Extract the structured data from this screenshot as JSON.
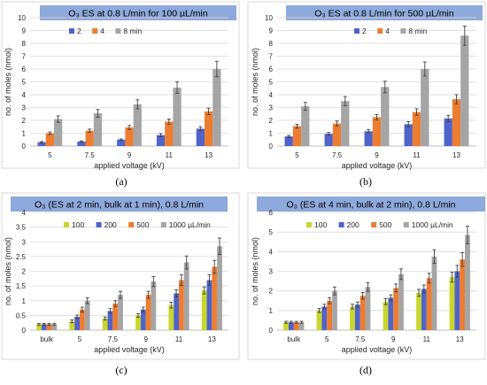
{
  "chart_data": [
    {
      "panel_label": "(a)",
      "type": "bar",
      "title": "O₃ ES at 0.8 L/min for 100 µL/min",
      "xlabel": "applied voltage (kV)",
      "ylabel": "no. of moles (nmol)",
      "ylim": [
        0,
        10
      ],
      "yticks": [
        "0",
        "1",
        "2",
        "3",
        "4",
        "5",
        "6",
        "7",
        "8",
        "9",
        "10"
      ],
      "legend_position": "top-left",
      "categories": [
        "5",
        "7.5",
        "9",
        "11",
        "13"
      ],
      "series": [
        {
          "name": "2",
          "color": "#4f63c9",
          "values": [
            0.3,
            0.35,
            0.5,
            0.85,
            1.35
          ],
          "errors": [
            0.05,
            0.05,
            0.05,
            0.12,
            0.15
          ]
        },
        {
          "name": "4",
          "color": "#ed7d31",
          "values": [
            1.0,
            1.2,
            1.45,
            1.9,
            2.7
          ],
          "errors": [
            0.1,
            0.12,
            0.15,
            0.2,
            0.25
          ]
        },
        {
          "name": "8 min",
          "color": "#a5a5a5",
          "values": [
            2.1,
            2.55,
            3.25,
            4.55,
            6.0
          ],
          "errors": [
            0.25,
            0.3,
            0.35,
            0.45,
            0.6
          ]
        }
      ]
    },
    {
      "panel_label": "(b)",
      "type": "bar",
      "title": "O₃ ES at 0.8 L/min for 500 µL/min",
      "xlabel": "applied voltage (kV)",
      "ylabel": "no. of moles (nmol)",
      "ylim": [
        0,
        10
      ],
      "yticks": [
        "0",
        "1",
        "2",
        "3",
        "4",
        "5",
        "6",
        "7",
        "8",
        "9",
        "10"
      ],
      "legend_position": "top-right",
      "categories": [
        "5",
        "7.5",
        "9",
        "11",
        "13"
      ],
      "series": [
        {
          "name": "2",
          "color": "#4f63c9",
          "values": [
            0.75,
            0.95,
            1.15,
            1.7,
            2.15
          ],
          "errors": [
            0.08,
            0.1,
            0.12,
            0.2,
            0.25
          ]
        },
        {
          "name": "4",
          "color": "#ed7d31",
          "values": [
            1.55,
            1.75,
            2.25,
            2.65,
            3.65
          ],
          "errors": [
            0.15,
            0.2,
            0.2,
            0.25,
            0.35
          ]
        },
        {
          "name": "8 min",
          "color": "#a5a5a5",
          "values": [
            3.1,
            3.5,
            4.6,
            6.0,
            8.6
          ],
          "errors": [
            0.3,
            0.35,
            0.45,
            0.55,
            0.75
          ]
        }
      ]
    },
    {
      "panel_label": "(c)",
      "type": "bar",
      "title": "O₃ (ES at 2 min, bulk at 1 min), 0.8 L/min",
      "xlabel": "applied voltage (kV)",
      "ylabel": "no. of moles (nmol)",
      "ylim": [
        0,
        4
      ],
      "yticks": [
        "0",
        "0.5",
        "1",
        "1.5",
        "2",
        "2.5",
        "3",
        "3.5",
        "4"
      ],
      "legend_position": "top",
      "categories": [
        "bulk",
        "5",
        "7.5",
        "9",
        "11",
        "13"
      ],
      "series": [
        {
          "name": "100",
          "color": "#c9d62e",
          "values": [
            0.2,
            0.3,
            0.4,
            0.5,
            0.85,
            1.35
          ],
          "errors": [
            0.03,
            0.05,
            0.05,
            0.06,
            0.1,
            0.12
          ]
        },
        {
          "name": "200",
          "color": "#4f63c9",
          "values": [
            0.2,
            0.45,
            0.65,
            0.7,
            1.25,
            1.7
          ],
          "errors": [
            0.03,
            0.06,
            0.08,
            0.08,
            0.12,
            0.18
          ]
        },
        {
          "name": "500",
          "color": "#ed7d31",
          "values": [
            0.2,
            0.7,
            0.9,
            1.2,
            1.7,
            2.15
          ],
          "errors": [
            0.03,
            0.08,
            0.1,
            0.12,
            0.18,
            0.22
          ]
        },
        {
          "name": "1000 µL/min",
          "color": "#a5a5a5",
          "values": [
            0.2,
            1.0,
            1.2,
            1.65,
            2.3,
            2.85
          ],
          "errors": [
            0.03,
            0.1,
            0.12,
            0.17,
            0.22,
            0.28
          ]
        }
      ]
    },
    {
      "panel_label": "(d)",
      "type": "bar",
      "title": "O₃ (ES at 4 min, bulk at 2 min), 0.8 L/min",
      "xlabel": "applied voltage (kV)",
      "ylabel": "no. of moles (nmol)",
      "ylim": [
        0,
        6
      ],
      "yticks": [
        "0",
        "1",
        "2",
        "3",
        "4",
        "5",
        "6"
      ],
      "legend_position": "top",
      "categories": [
        "bulk",
        "5",
        "7.5",
        "9",
        "11",
        "13"
      ],
      "series": [
        {
          "name": "100",
          "color": "#c9d62e",
          "values": [
            0.4,
            1.0,
            1.2,
            1.45,
            1.9,
            2.7
          ],
          "errors": [
            0.05,
            0.1,
            0.12,
            0.15,
            0.18,
            0.25
          ]
        },
        {
          "name": "200",
          "color": "#4f63c9",
          "values": [
            0.4,
            1.2,
            1.3,
            1.65,
            2.1,
            3.0
          ],
          "errors": [
            0.05,
            0.12,
            0.13,
            0.15,
            0.2,
            0.3
          ]
        },
        {
          "name": "500",
          "color": "#ed7d31",
          "values": [
            0.4,
            1.5,
            1.75,
            2.15,
            2.65,
            3.6
          ],
          "errors": [
            0.05,
            0.15,
            0.17,
            0.2,
            0.25,
            0.35
          ]
        },
        {
          "name": "1000 µL/min",
          "color": "#a5a5a5",
          "values": [
            0.4,
            2.0,
            2.2,
            2.85,
            3.75,
            4.85
          ],
          "errors": [
            0.05,
            0.2,
            0.22,
            0.27,
            0.35,
            0.45
          ]
        }
      ]
    }
  ]
}
